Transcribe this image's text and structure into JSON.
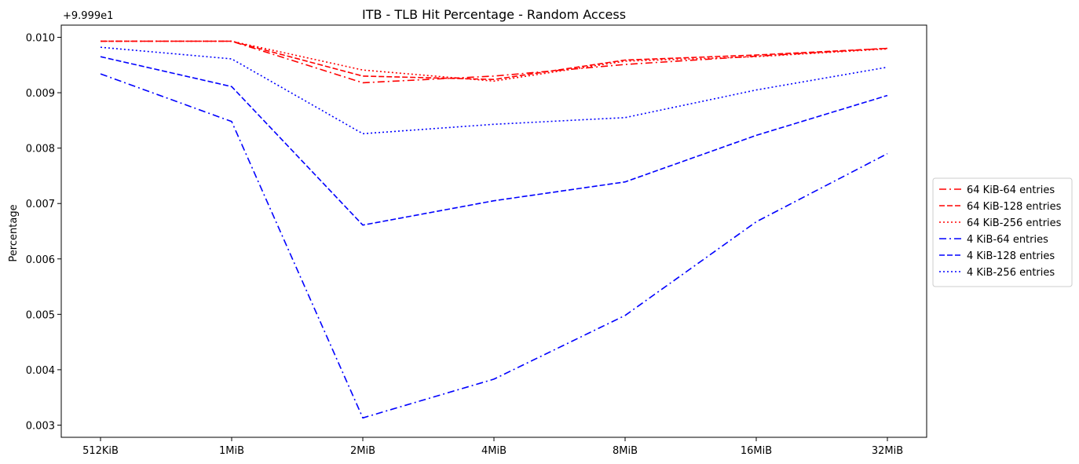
{
  "chart_data": {
    "type": "line",
    "title": "ITB - TLB Hit Percentage - Random Access",
    "xlabel": "",
    "ylabel": "Percentage",
    "offset_label": "+9.999e1",
    "categories": [
      "512KiB",
      "1MiB",
      "2MiB",
      "4MiB",
      "8MiB",
      "16MiB",
      "32MiB"
    ],
    "yticks": [
      "0.003",
      "0.004",
      "0.005",
      "0.006",
      "0.007",
      "0.008",
      "0.009",
      "0.010"
    ],
    "ylim": [
      0.00278,
      0.01022
    ],
    "grid": false,
    "legend_position": "center-right",
    "series": [
      {
        "name": "64 KiB-64 entries",
        "color": "#ff0000",
        "dash": "dashdot",
        "values": [
          0.00993,
          0.00993,
          0.00918,
          0.0093,
          0.00951,
          0.00966,
          0.0098
        ]
      },
      {
        "name": "64 KiB-128 entries",
        "color": "#ff0000",
        "dash": "dashed",
        "values": [
          0.00993,
          0.00993,
          0.0093,
          0.00924,
          0.00959,
          0.00968,
          0.0098
        ]
      },
      {
        "name": "64 KiB-256 entries",
        "color": "#ff0000",
        "dash": "dotted",
        "values": [
          0.00993,
          0.00993,
          0.00941,
          0.00921,
          0.00957,
          0.00965,
          0.00979
        ]
      },
      {
        "name": "4 KiB-64 entries",
        "color": "#0000ff",
        "dash": "dashdot",
        "values": [
          0.00934,
          0.00848,
          0.00313,
          0.00383,
          0.00498,
          0.00667,
          0.0079
        ]
      },
      {
        "name": "4 KiB-128 entries",
        "color": "#0000ff",
        "dash": "dashed",
        "values": [
          0.00965,
          0.00911,
          0.00661,
          0.00705,
          0.00739,
          0.00823,
          0.00895
        ]
      },
      {
        "name": "4 KiB-256 entries",
        "color": "#0000ff",
        "dash": "dotted",
        "values": [
          0.00982,
          0.00961,
          0.00826,
          0.00843,
          0.00855,
          0.00905,
          0.00946
        ]
      }
    ]
  }
}
